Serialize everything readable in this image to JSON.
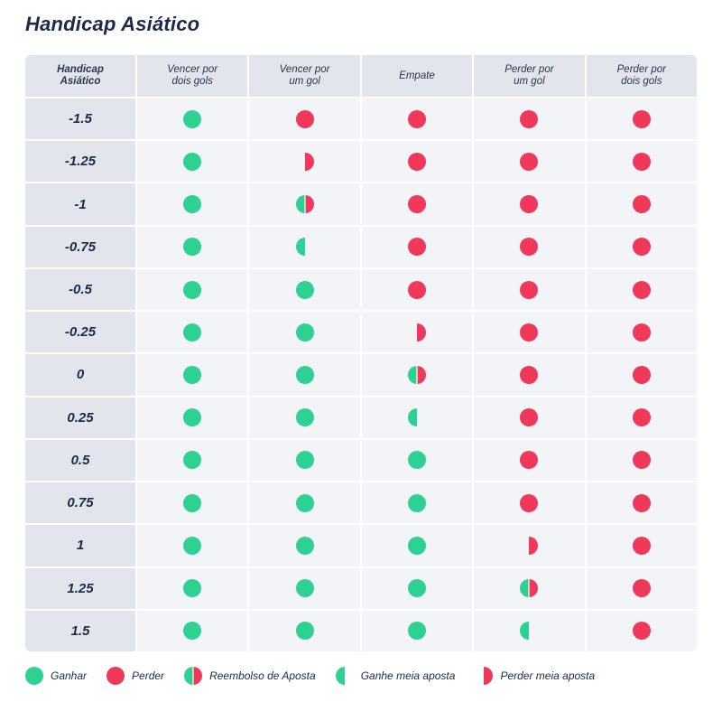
{
  "title": "Handicap Asiático",
  "colors": {
    "win": "#2dd192",
    "lose": "#f0385b"
  },
  "header": {
    "first": "Handicap\nAsiático",
    "columns": [
      "Vencer por\ndois gols",
      "Vencer por\num gol",
      "Empate",
      "Perder por\num gol",
      "Perder por\ndois gols"
    ]
  },
  "rows": [
    {
      "label": "-1.5",
      "cells": [
        "win",
        "lose",
        "lose",
        "lose",
        "lose"
      ]
    },
    {
      "label": "-1.25",
      "cells": [
        "win",
        "half-lose",
        "lose",
        "lose",
        "lose"
      ]
    },
    {
      "label": "-1",
      "cells": [
        "win",
        "refund",
        "lose",
        "lose",
        "lose"
      ]
    },
    {
      "label": "-0.75",
      "cells": [
        "win",
        "half-win",
        "lose",
        "lose",
        "lose"
      ]
    },
    {
      "label": "-0.5",
      "cells": [
        "win",
        "win",
        "lose",
        "lose",
        "lose"
      ]
    },
    {
      "label": "-0.25",
      "cells": [
        "win",
        "win",
        "half-lose",
        "lose",
        "lose"
      ]
    },
    {
      "label": "0",
      "cells": [
        "win",
        "win",
        "refund",
        "lose",
        "lose"
      ]
    },
    {
      "label": "0.25",
      "cells": [
        "win",
        "win",
        "half-win",
        "lose",
        "lose"
      ]
    },
    {
      "label": "0.5",
      "cells": [
        "win",
        "win",
        "win",
        "lose",
        "lose"
      ]
    },
    {
      "label": "0.75",
      "cells": [
        "win",
        "win",
        "win",
        "lose",
        "lose"
      ]
    },
    {
      "label": "1",
      "cells": [
        "win",
        "win",
        "win",
        "half-lose",
        "lose"
      ]
    },
    {
      "label": "1.25",
      "cells": [
        "win",
        "win",
        "win",
        "refund",
        "lose"
      ]
    },
    {
      "label": "1.5",
      "cells": [
        "win",
        "win",
        "win",
        "half-win",
        "lose"
      ]
    }
  ],
  "legend": [
    {
      "type": "win",
      "label": "Ganhar"
    },
    {
      "type": "lose",
      "label": "Perder"
    },
    {
      "type": "refund",
      "label": "Reembolso de Aposta"
    },
    {
      "type": "half-win",
      "label": "Ganhe meia aposta"
    },
    {
      "type": "half-lose",
      "label": "Perder meia aposta"
    }
  ]
}
